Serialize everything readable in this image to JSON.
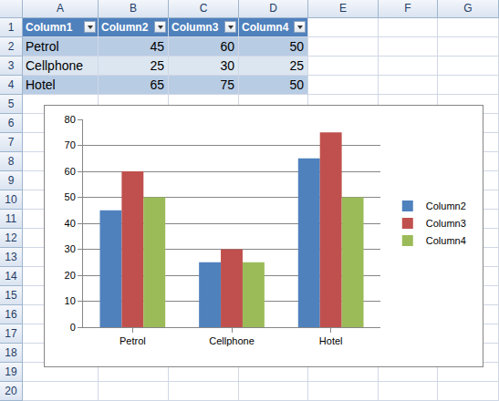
{
  "spreadsheet": {
    "column_headers": [
      "A",
      "B",
      "C",
      "D",
      "E",
      "F",
      "G"
    ],
    "row_numbers": [
      1,
      2,
      3,
      4,
      5,
      6,
      7,
      8,
      9,
      10,
      11,
      12,
      13,
      14,
      15,
      16,
      17,
      18,
      19,
      20
    ],
    "table": {
      "header": [
        "Column1",
        "Column2",
        "Column3",
        "Column4"
      ],
      "rows": [
        [
          "Petrol",
          45,
          60,
          50
        ],
        [
          "Cellphone",
          25,
          30,
          25
        ],
        [
          "Hotel",
          65,
          75,
          50
        ]
      ]
    }
  },
  "chart_data": {
    "type": "bar",
    "categories": [
      "Petrol",
      "Cellphone",
      "Hotel"
    ],
    "series": [
      {
        "name": "Column2",
        "color": "#4f81bd",
        "values": [
          45,
          25,
          65
        ]
      },
      {
        "name": "Column3",
        "color": "#c0504d",
        "values": [
          60,
          30,
          75
        ]
      },
      {
        "name": "Column4",
        "color": "#9bbb59",
        "values": [
          50,
          25,
          50
        ]
      }
    ],
    "ylim": [
      0,
      80
    ],
    "yticks": [
      0,
      10,
      20,
      30,
      40,
      50,
      60,
      70,
      80
    ],
    "grid": true,
    "legend": "right"
  }
}
